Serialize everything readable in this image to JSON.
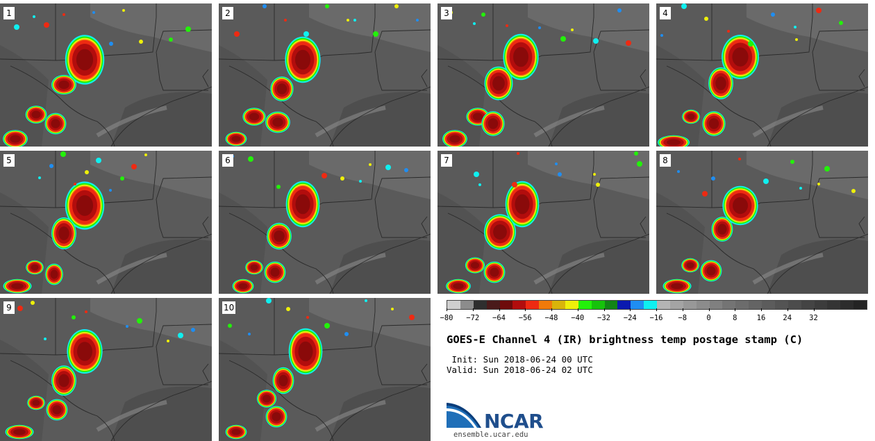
{
  "panels": [
    {
      "label": "1"
    },
    {
      "label": "2"
    },
    {
      "label": "3"
    },
    {
      "label": "4"
    },
    {
      "label": "5"
    },
    {
      "label": "6"
    },
    {
      "label": "7"
    },
    {
      "label": "8"
    },
    {
      "label": "9"
    },
    {
      "label": "10"
    }
  ],
  "colorbar": {
    "colors": [
      "#cfcfcf",
      "#8c8c8c",
      "#2e2e2e",
      "#4a1a1a",
      "#6e0b0b",
      "#b20d0d",
      "#ee2a12",
      "#f07a0a",
      "#d9b40b",
      "#eef00a",
      "#23f10a",
      "#16c20b",
      "#128516",
      "#0b1ab0",
      "#1f8ef2",
      "#0ff0f0",
      "#b4b4b4",
      "#a4a4a4",
      "#989898",
      "#8c8c8c",
      "#808080",
      "#747474",
      "#6c6c6c",
      "#646464",
      "#5c5c5c",
      "#545454",
      "#4c4c4c",
      "#444444",
      "#3c3c3c",
      "#343434",
      "#2c2c2c",
      "#242424"
    ],
    "ticks": [
      "−80",
      "−72",
      "−64",
      "−56",
      "−48",
      "−40",
      "−32",
      "−24",
      "−16",
      "−8",
      "0",
      "8",
      "16",
      "24",
      "32"
    ]
  },
  "title": "GOES-E Channel 4 (IR) brightness temp postage stamp (C)",
  "init_line": " Init: Sun 2018-06-24 00 UTC",
  "valid_line": "Valid: Sun 2018-06-24 02 UTC",
  "logo_text": "NCAR",
  "site": "ensemble.ucar.edu"
}
